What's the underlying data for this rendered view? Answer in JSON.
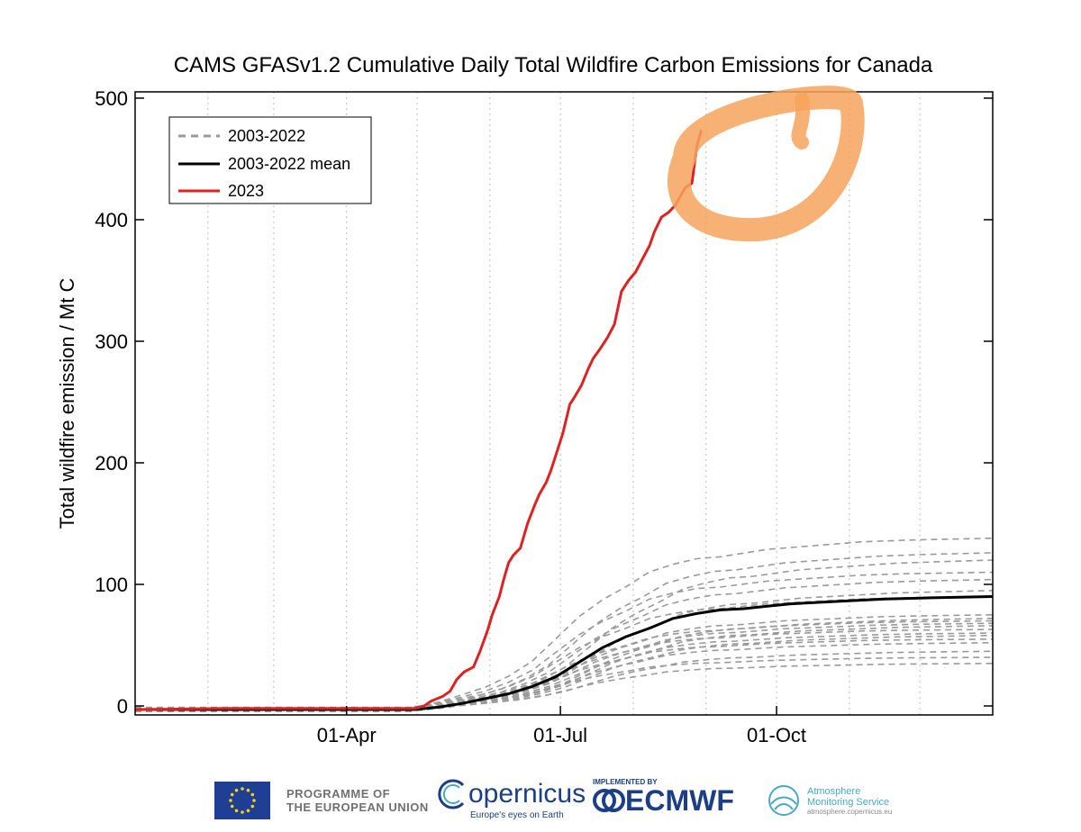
{
  "chart_data": {
    "type": "line",
    "title": "CAMS GFASv1.2 Cumulative Daily Total Wildfire Carbon Emissions for Canada",
    "xlabel": "",
    "ylabel": "Total wildfire emission / Mt C",
    "x_unit": "day of year",
    "xlim": [
      1,
      366
    ],
    "ylim": [
      -5,
      500
    ],
    "y_ticks": [
      0,
      100,
      200,
      300,
      400,
      500
    ],
    "x_tick_labels": [
      {
        "label": "01-Apr",
        "x": 91
      },
      {
        "label": "01-Jul",
        "x": 182
      },
      {
        "label": "01-Oct",
        "x": 274
      }
    ],
    "x_gridlines": [
      32,
      60,
      91,
      121,
      152,
      182,
      213,
      244,
      274,
      305,
      335
    ],
    "grid": "vertical dotted",
    "legend_position": "top-left",
    "legend": [
      {
        "label": "2003-2022",
        "style": "dashed",
        "color": "#999999"
      },
      {
        "label": "2003-2022 mean",
        "style": "solid",
        "color": "#000000"
      },
      {
        "label": "2023",
        "style": "solid",
        "color": "#dd2222"
      }
    ],
    "series": [
      {
        "name": "2023",
        "color": "#dd2222",
        "points": [
          [
            1,
            -3
          ],
          [
            40,
            -2
          ],
          [
            90,
            -2
          ],
          [
            120,
            -2
          ],
          [
            124,
            0
          ],
          [
            127,
            4
          ],
          [
            132,
            8
          ],
          [
            135,
            12
          ],
          [
            138,
            22
          ],
          [
            141,
            28
          ],
          [
            145,
            32
          ],
          [
            148,
            46
          ],
          [
            151,
            62
          ],
          [
            153,
            75
          ],
          [
            156,
            90
          ],
          [
            158,
            105
          ],
          [
            160,
            118
          ],
          [
            162,
            124
          ],
          [
            165,
            130
          ],
          [
            168,
            150
          ],
          [
            171,
            165
          ],
          [
            173,
            174
          ],
          [
            176,
            184
          ],
          [
            178,
            194
          ],
          [
            180,
            206
          ],
          [
            183,
            224
          ],
          [
            186,
            248
          ],
          [
            188,
            254
          ],
          [
            191,
            264
          ],
          [
            194,
            278
          ],
          [
            196,
            286
          ],
          [
            199,
            294
          ],
          [
            202,
            303
          ],
          [
            205,
            314
          ],
          [
            208,
            341
          ],
          [
            211,
            350
          ],
          [
            214,
            357
          ],
          [
            217,
            368
          ],
          [
            220,
            379
          ],
          [
            222,
            390
          ],
          [
            225,
            402
          ],
          [
            228,
            406
          ],
          [
            231,
            412
          ],
          [
            235,
            426
          ],
          [
            238,
            430
          ],
          [
            240,
            460
          ],
          [
            242,
            474
          ]
        ]
      },
      {
        "name": "2003-2022 mean",
        "color": "#000000",
        "points": [
          [
            1,
            -3
          ],
          [
            120,
            -3
          ],
          [
            130,
            -1
          ],
          [
            140,
            2
          ],
          [
            150,
            6
          ],
          [
            160,
            10
          ],
          [
            170,
            16
          ],
          [
            180,
            24
          ],
          [
            190,
            36
          ],
          [
            200,
            48
          ],
          [
            210,
            57
          ],
          [
            220,
            64
          ],
          [
            230,
            72
          ],
          [
            240,
            76
          ],
          [
            250,
            79
          ],
          [
            260,
            80
          ],
          [
            270,
            82
          ],
          [
            280,
            84
          ],
          [
            300,
            86
          ],
          [
            320,
            88
          ],
          [
            340,
            89
          ],
          [
            366,
            90
          ]
        ]
      }
    ],
    "series_years_2003_2022_endpoints": [
      138,
      126,
      120,
      110,
      104,
      95,
      90,
      75,
      72,
      70,
      68,
      66,
      63,
      60,
      58,
      55,
      52,
      45,
      40,
      35
    ]
  },
  "annotation": {
    "shape": "hand-drawn circle around the 2023 endpoint",
    "color": "#f7a35c"
  },
  "footer": {
    "eu_line1": "PROGRAMME OF",
    "eu_line2": "THE EUROPEAN UNION",
    "copernicus_word": "opernicus",
    "copernicus_tagline": "Europe's eyes on Earth",
    "ecmwf_small": "IMPLEMENTED BY",
    "ecmwf_big": "ECMWF",
    "ams_line1": "Atmosphere",
    "ams_line2": "Monitoring Service",
    "ams_url": "atmosphere.copernicus.eu"
  }
}
